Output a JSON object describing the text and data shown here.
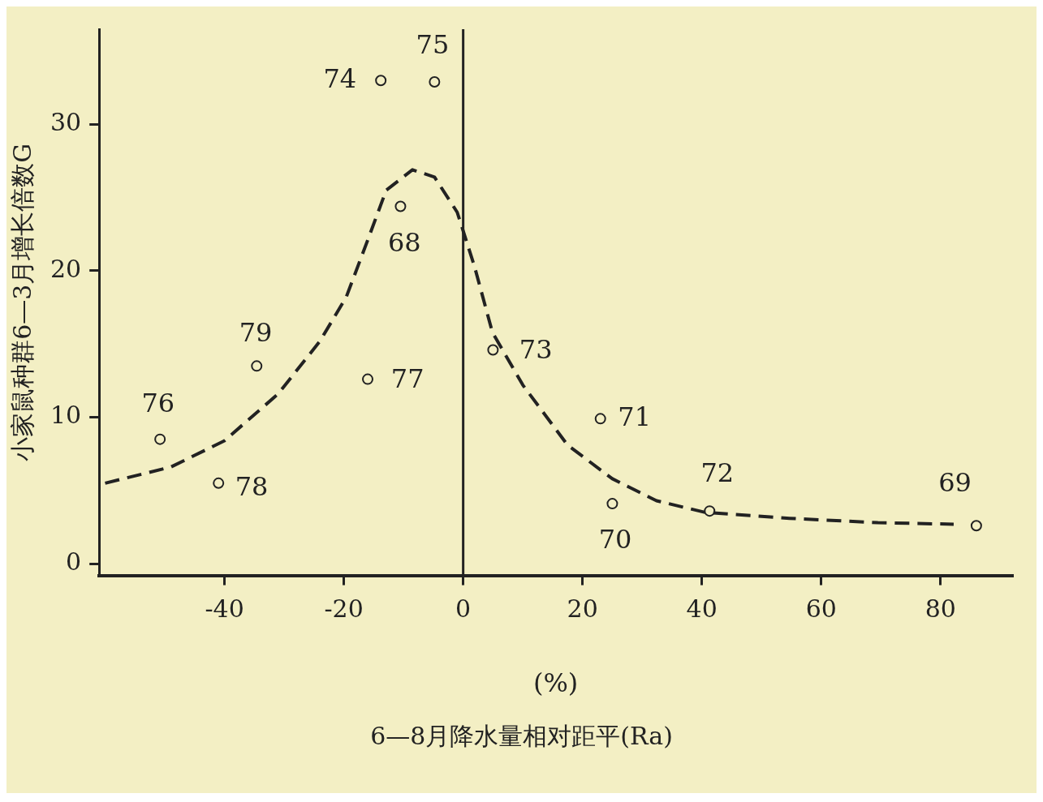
{
  "chart_data": {
    "type": "scatter",
    "xlabel": "(%)",
    "ylabel": "小家鼠种群6—3月增长倍数G",
    "xlim": [
      -61,
      92
    ],
    "ylim": [
      -0.8,
      36.5
    ],
    "xticks": [
      -40,
      -20,
      0,
      20,
      40,
      60,
      80
    ],
    "yticks": [
      0,
      10,
      20,
      30
    ],
    "grid": false,
    "legend": false,
    "series": [
      {
        "color": "#222222",
        "marker": "circle",
        "x": [
          -50.8,
          -41,
          -34.6,
          -16,
          -13.8,
          -10.5,
          -4.8,
          5,
          23,
          25,
          41.3,
          86
        ],
        "values": [
          8.5,
          5.5,
          13.5,
          12.6,
          33,
          24.4,
          32.9,
          14.6,
          9.9,
          4.1,
          3.6,
          2.6
        ]
      },
      {
        "type": "line",
        "color": "#222222",
        "marker": "none",
        "line_style": "dashed",
        "x": [
          -60,
          -49,
          -40,
          -31,
          -24,
          -19.6,
          -15.9,
          -12.9,
          -8.5,
          -4.8,
          -1,
          1.9,
          4.9,
          10,
          17.5,
          25,
          32.4,
          40.6,
          54.7,
          69.5,
          82.2
        ],
        "values": [
          5.5,
          6.6,
          8.4,
          11.6,
          15.2,
          18.2,
          22.2,
          25.5,
          26.9,
          26.4,
          24,
          20.3,
          15.8,
          12.2,
          8.1,
          5.8,
          4.3,
          3.5,
          3.1,
          2.8,
          2.7
        ]
      }
    ],
    "ref_lines": [
      {
        "axis": "x",
        "value": 0,
        "color": "#222222"
      }
    ],
    "annotations": [
      {
        "text": "76",
        "x": -50.8,
        "y": 8.5
      },
      {
        "text": "78",
        "x": -41,
        "y": 5.5
      },
      {
        "text": "79",
        "x": -34.6,
        "y": 13.5
      },
      {
        "text": "77",
        "x": -16,
        "y": 12.6
      },
      {
        "text": "74",
        "x": -13.8,
        "y": 33
      },
      {
        "text": "68",
        "x": -10.5,
        "y": 24.4
      },
      {
        "text": "75",
        "x": -4.8,
        "y": 32.9
      },
      {
        "text": "73",
        "x": 5,
        "y": 14.6
      },
      {
        "text": "71",
        "x": 23,
        "y": 9.9
      },
      {
        "text": "70",
        "x": 25,
        "y": 4.1
      },
      {
        "text": "72",
        "x": 41.3,
        "y": 3.6
      },
      {
        "text": "69",
        "x": 86,
        "y": 2.6
      },
      "6—8月降水量相对距平(Ra)"
    ]
  }
}
